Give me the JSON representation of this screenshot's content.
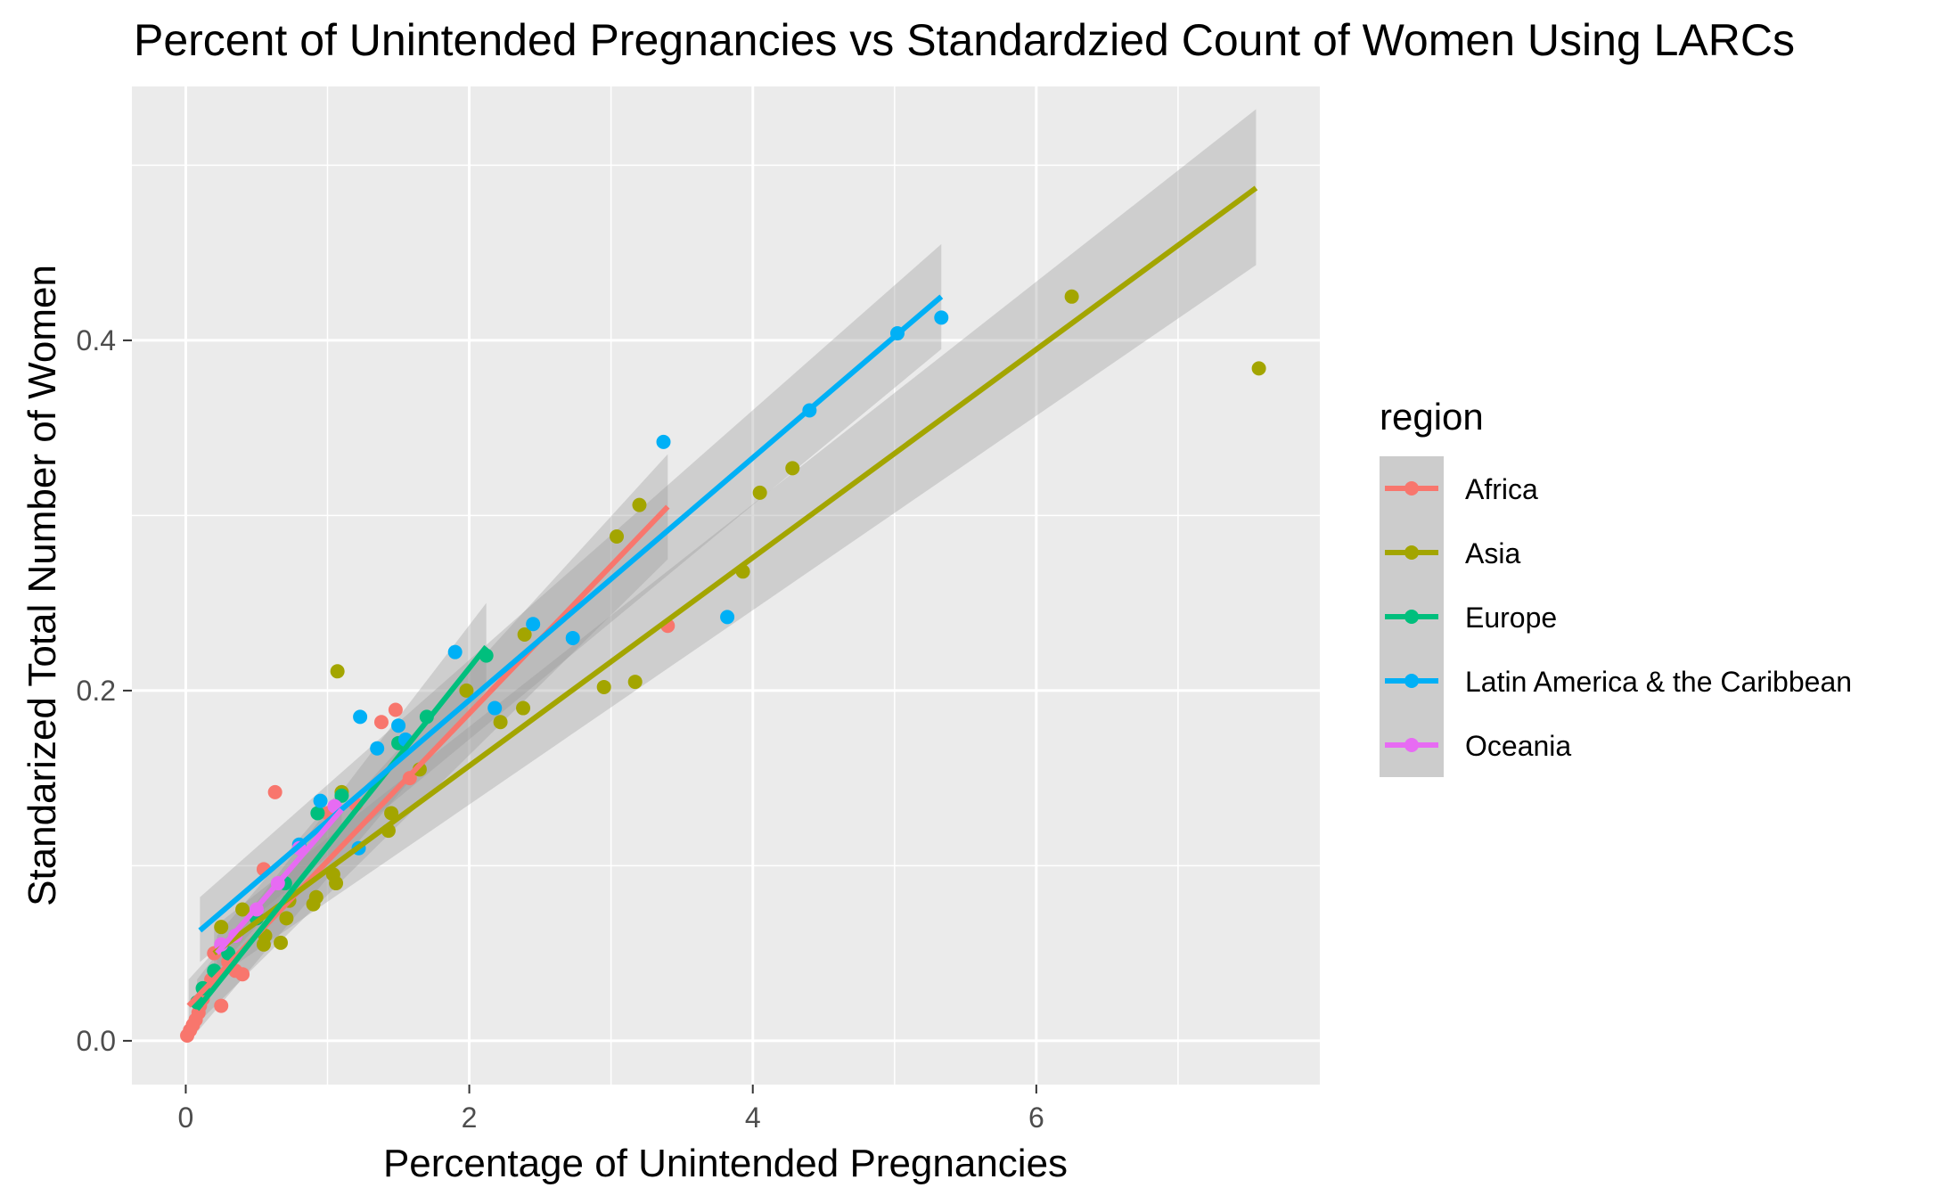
{
  "chart_data": {
    "type": "scatter",
    "title": "Percent of Unintended Pregnancies vs Standardzied Count of Women Using LARCs",
    "xlabel": "Percentage of Unintended Pregnancies",
    "ylabel": "Standarized Total Number of Women",
    "xlim": [
      -0.38,
      8.0
    ],
    "ylim": [
      -0.025,
      0.545
    ],
    "x_ticks": [
      0,
      2,
      4,
      6
    ],
    "x_tick_labels": [
      "0",
      "2",
      "4",
      "6"
    ],
    "y_ticks": [
      0.0,
      0.2,
      0.4
    ],
    "y_tick_labels": [
      "0.0",
      "0.2",
      "0.4"
    ],
    "grid": true,
    "legend": {
      "title": "region",
      "position": "right"
    },
    "series": [
      {
        "name": "Africa",
        "color": "#F8766D",
        "points": [
          [
            0.01,
            0.003
          ],
          [
            0.03,
            0.006
          ],
          [
            0.05,
            0.009
          ],
          [
            0.07,
            0.012
          ],
          [
            0.09,
            0.016
          ],
          [
            0.1,
            0.02
          ],
          [
            0.12,
            0.024
          ],
          [
            0.15,
            0.03
          ],
          [
            0.18,
            0.035
          ],
          [
            0.2,
            0.05
          ],
          [
            0.25,
            0.02
          ],
          [
            0.3,
            0.045
          ],
          [
            0.35,
            0.04
          ],
          [
            0.4,
            0.038
          ],
          [
            0.5,
            0.07
          ],
          [
            0.55,
            0.098
          ],
          [
            0.63,
            0.142
          ],
          [
            0.8,
            0.11
          ],
          [
            1.0,
            0.13
          ],
          [
            1.2,
            0.135
          ],
          [
            1.38,
            0.182
          ],
          [
            1.48,
            0.189
          ],
          [
            1.58,
            0.15
          ],
          [
            3.4,
            0.237
          ]
        ],
        "fit": {
          "x": [
            0.02,
            3.4
          ],
          "y": [
            0.02,
            0.305
          ],
          "band_lo": [
            0.005,
            0.275
          ],
          "band_hi": [
            0.035,
            0.335
          ]
        }
      },
      {
        "name": "Asia",
        "color": "#A3A500",
        "points": [
          [
            0.25,
            0.065
          ],
          [
            0.4,
            0.075
          ],
          [
            0.55,
            0.055
          ],
          [
            0.56,
            0.06
          ],
          [
            0.67,
            0.056
          ],
          [
            0.71,
            0.07
          ],
          [
            0.73,
            0.08
          ],
          [
            0.9,
            0.078
          ],
          [
            0.92,
            0.082
          ],
          [
            1.04,
            0.095
          ],
          [
            1.06,
            0.09
          ],
          [
            1.07,
            0.211
          ],
          [
            1.1,
            0.142
          ],
          [
            1.43,
            0.12
          ],
          [
            1.45,
            0.13
          ],
          [
            1.65,
            0.155
          ],
          [
            1.98,
            0.2
          ],
          [
            2.22,
            0.182
          ],
          [
            2.38,
            0.19
          ],
          [
            2.39,
            0.232
          ],
          [
            2.95,
            0.202
          ],
          [
            3.04,
            0.288
          ],
          [
            3.17,
            0.205
          ],
          [
            3.2,
            0.306
          ],
          [
            3.93,
            0.268
          ],
          [
            4.05,
            0.313
          ],
          [
            4.28,
            0.327
          ],
          [
            6.25,
            0.425
          ],
          [
            7.57,
            0.384
          ]
        ],
        "fit": {
          "x": [
            0.2,
            7.55
          ],
          "y": [
            0.05,
            0.487
          ],
          "band_lo": [
            0.035,
            0.443
          ],
          "band_hi": [
            0.065,
            0.532
          ]
        }
      },
      {
        "name": "Europe",
        "color": "#00BF7D",
        "points": [
          [
            0.08,
            0.022
          ],
          [
            0.12,
            0.03
          ],
          [
            0.2,
            0.04
          ],
          [
            0.3,
            0.05
          ],
          [
            0.5,
            0.07
          ],
          [
            0.7,
            0.09
          ],
          [
            0.93,
            0.13
          ],
          [
            1.1,
            0.14
          ],
          [
            1.5,
            0.17
          ],
          [
            1.7,
            0.185
          ],
          [
            2.12,
            0.22
          ]
        ],
        "fit": {
          "x": [
            0.08,
            2.12
          ],
          "y": [
            0.018,
            0.225
          ],
          "band_lo": [
            0.005,
            0.2
          ],
          "band_hi": [
            0.035,
            0.25
          ]
        }
      },
      {
        "name": "Latin America & the Caribbean",
        "color": "#00B0F6",
        "points": [
          [
            0.8,
            0.112
          ],
          [
            0.95,
            0.137
          ],
          [
            1.22,
            0.11
          ],
          [
            1.23,
            0.185
          ],
          [
            1.35,
            0.167
          ],
          [
            1.5,
            0.18
          ],
          [
            1.55,
            0.172
          ],
          [
            1.9,
            0.222
          ],
          [
            2.18,
            0.19
          ],
          [
            2.45,
            0.238
          ],
          [
            2.73,
            0.23
          ],
          [
            3.37,
            0.342
          ],
          [
            3.82,
            0.242
          ],
          [
            4.4,
            0.36
          ],
          [
            5.02,
            0.404
          ],
          [
            5.33,
            0.413
          ]
        ],
        "fit": {
          "x": [
            0.1,
            5.33
          ],
          "y": [
            0.063,
            0.425
          ],
          "band_lo": [
            0.045,
            0.395
          ],
          "band_hi": [
            0.082,
            0.455
          ]
        }
      },
      {
        "name": "Oceania",
        "color": "#E76BF3",
        "points": [
          [
            0.25,
            0.055
          ],
          [
            0.35,
            0.06
          ],
          [
            0.5,
            0.075
          ],
          [
            0.65,
            0.09
          ],
          [
            0.8,
            0.11
          ],
          [
            1.05,
            0.134
          ]
        ],
        "fit": {
          "x": [
            0.22,
            1.1
          ],
          "y": [
            0.05,
            0.132
          ],
          "band_lo": [
            0.04,
            0.12
          ],
          "band_hi": [
            0.06,
            0.144
          ]
        }
      }
    ]
  }
}
